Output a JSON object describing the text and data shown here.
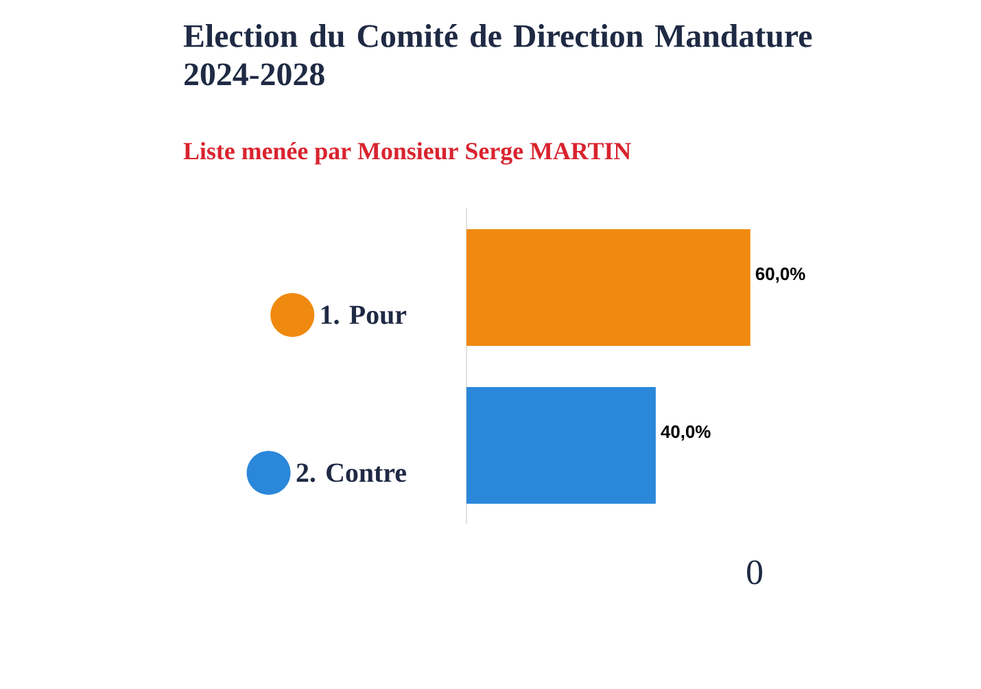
{
  "chart_data": {
    "type": "bar",
    "orientation": "horizontal",
    "title": "Election du Comité de Direction Mandature 2024-2028",
    "subtitle": "Liste menée par Monsieur Serge MARTIN",
    "categories": [
      "1. Pour",
      "2. Contre"
    ],
    "values": [
      60,
      40
    ],
    "value_labels": [
      "60,0%",
      "40,0%"
    ],
    "colors": [
      "#f0890f",
      "#2b87d9"
    ],
    "annotations": [
      "0"
    ]
  }
}
